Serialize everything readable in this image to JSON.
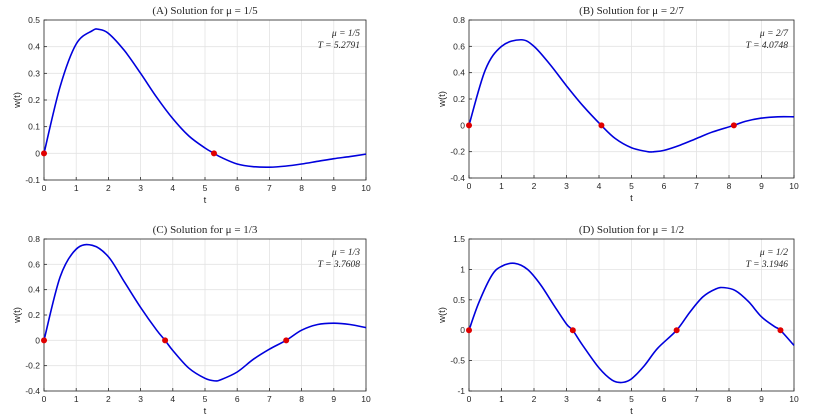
{
  "chart_data": [
    {
      "type": "line",
      "title": "(A)  Solution for  μ = 1/5",
      "xlabel": "t",
      "ylabel": "w(t)",
      "xlim": [
        0,
        10
      ],
      "ylim": [
        -0.1,
        0.5
      ],
      "xticks": [
        "0",
        "1",
        "2",
        "3",
        "4",
        "5",
        "6",
        "7",
        "8",
        "9",
        "10"
      ],
      "yticks": [
        "-0.1",
        "0",
        "0.1",
        "0.2",
        "0.3",
        "0.4",
        "0.5"
      ],
      "grid": true,
      "annotation": [
        "μ = 1/5",
        "T = 5.2791"
      ],
      "series": [
        {
          "color": "#0000dd",
          "x": [
            0,
            0.5,
            1,
            1.5,
            1.7,
            2,
            2.5,
            3,
            3.5,
            4,
            4.5,
            5,
            5.28,
            5.5,
            6,
            6.5,
            7,
            7.5,
            8,
            8.5,
            9,
            9.5,
            10
          ],
          "y": [
            0,
            0.25,
            0.41,
            0.46,
            0.465,
            0.45,
            0.385,
            0.3,
            0.21,
            0.13,
            0.065,
            0.02,
            0,
            -0.015,
            -0.04,
            -0.05,
            -0.052,
            -0.048,
            -0.04,
            -0.03,
            -0.02,
            -0.012,
            -0.003
          ]
        }
      ],
      "markers": {
        "color": "#e00000",
        "x": [
          0,
          5.2791
        ],
        "y": [
          0,
          0
        ]
      }
    },
    {
      "type": "line",
      "title": "(B)  Solution for  μ = 2/7",
      "xlabel": "t",
      "ylabel": "w(t)",
      "xlim": [
        0,
        10
      ],
      "ylim": [
        -0.4,
        0.8
      ],
      "xticks": [
        "0",
        "1",
        "2",
        "3",
        "4",
        "5",
        "6",
        "7",
        "8",
        "9",
        "10"
      ],
      "yticks": [
        "-0.4",
        "-0.2",
        "0",
        "0.2",
        "0.4",
        "0.6",
        "0.8"
      ],
      "grid": true,
      "annotation": [
        "μ = 2/7",
        "T = 4.0748"
      ],
      "series": [
        {
          "color": "#0000dd",
          "x": [
            0,
            0.5,
            1,
            1.6,
            2,
            2.5,
            3,
            3.5,
            4.07,
            4.5,
            5,
            5.5,
            5.7,
            6,
            6.5,
            7,
            7.5,
            8.15,
            8.5,
            9,
            9.5,
            10
          ],
          "y": [
            0,
            0.42,
            0.6,
            0.65,
            0.6,
            0.46,
            0.3,
            0.15,
            0,
            -0.1,
            -0.17,
            -0.2,
            -0.2,
            -0.19,
            -0.15,
            -0.1,
            -0.05,
            0,
            0.03,
            0.055,
            0.065,
            0.065
          ]
        }
      ],
      "markers": {
        "color": "#e00000",
        "x": [
          0,
          4.0748,
          8.1496
        ],
        "y": [
          0,
          0,
          0
        ]
      }
    },
    {
      "type": "line",
      "title": "(C)  Solution for  μ = 1/3",
      "xlabel": "t",
      "ylabel": "w(t)",
      "xlim": [
        0,
        10
      ],
      "ylim": [
        -0.4,
        0.8
      ],
      "xticks": [
        "0",
        "1",
        "2",
        "3",
        "4",
        "5",
        "6",
        "7",
        "8",
        "9",
        "10"
      ],
      "yticks": [
        "-0.4",
        "-0.2",
        "0",
        "0.2",
        "0.4",
        "0.6",
        "0.8"
      ],
      "grid": true,
      "annotation": [
        "μ = 1/3",
        "T = 3.7608"
      ],
      "series": [
        {
          "color": "#0000dd",
          "x": [
            0,
            0.5,
            1,
            1.5,
            2,
            2.5,
            3,
            3.5,
            3.76,
            4,
            4.5,
            5,
            5.3,
            5.5,
            6,
            6.5,
            7,
            7.52,
            8,
            8.5,
            9,
            9.5,
            10
          ],
          "y": [
            0,
            0.5,
            0.72,
            0.75,
            0.66,
            0.46,
            0.26,
            0.08,
            0,
            -0.08,
            -0.22,
            -0.3,
            -0.32,
            -0.31,
            -0.25,
            -0.15,
            -0.07,
            0,
            0.08,
            0.125,
            0.135,
            0.125,
            0.1
          ]
        }
      ],
      "markers": {
        "color": "#e00000",
        "x": [
          0,
          3.7608,
          7.5216
        ],
        "y": [
          0,
          0,
          0
        ]
      }
    },
    {
      "type": "line",
      "title": "(D)  Solution for  μ = 1/2",
      "xlabel": "t",
      "ylabel": "w(t)",
      "xlim": [
        0,
        10
      ],
      "ylim": [
        -1,
        1.5
      ],
      "xticks": [
        "0",
        "1",
        "2",
        "3",
        "4",
        "5",
        "6",
        "7",
        "8",
        "9",
        "10"
      ],
      "yticks": [
        "-1",
        "-0.5",
        "0",
        "0.5",
        "1",
        "1.5"
      ],
      "grid": true,
      "annotation": [
        "μ = 1/2",
        "T = 3.1946"
      ],
      "series": [
        {
          "color": "#0000dd",
          "x": [
            0,
            0.3,
            0.7,
            1,
            1.4,
            1.8,
            2.2,
            2.6,
            3,
            3.19,
            3.5,
            4,
            4.4,
            4.7,
            5,
            5.4,
            5.8,
            6.39,
            6.8,
            7.2,
            7.6,
            7.85,
            8.2,
            8.6,
            9,
            9.4,
            9.58,
            10
          ],
          "y": [
            0,
            0.45,
            0.9,
            1.05,
            1.1,
            1.0,
            0.75,
            0.42,
            0.1,
            0,
            -0.25,
            -0.62,
            -0.82,
            -0.86,
            -0.8,
            -0.58,
            -0.3,
            0,
            0.3,
            0.55,
            0.68,
            0.7,
            0.65,
            0.47,
            0.22,
            0.06,
            0,
            -0.25
          ]
        }
      ],
      "markers": {
        "color": "#e00000",
        "x": [
          0,
          3.1946,
          6.3892,
          9.5838
        ],
        "y": [
          0,
          0,
          0,
          0
        ]
      }
    }
  ]
}
